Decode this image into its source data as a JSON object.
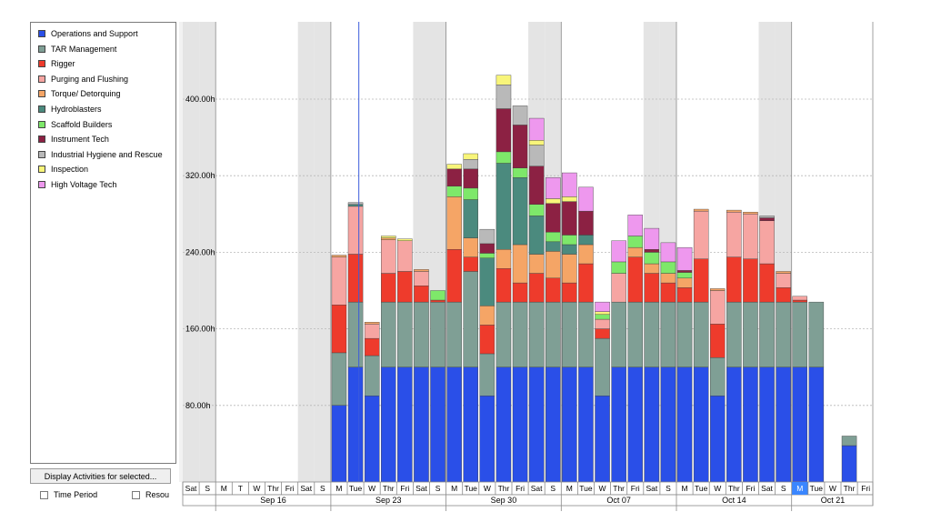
{
  "legend": {
    "items": [
      {
        "label": "Operations and Support",
        "color": "#2a4fe8"
      },
      {
        "label": "TAR Management",
        "color": "#7f9f95"
      },
      {
        "label": "Rigger",
        "color": "#ee3b2c"
      },
      {
        "label": "Purging and Flushing",
        "color": "#f6a5a2"
      },
      {
        "label": "Torque/ Detorquing",
        "color": "#f5a566"
      },
      {
        "label": "Hydroblasters",
        "color": "#4b8a7e"
      },
      {
        "label": "Scaffold Builders",
        "color": "#7ee86a"
      },
      {
        "label": "Instrument Tech",
        "color": "#8c2143"
      },
      {
        "label": "Industrial Hygiene and Rescue",
        "color": "#b9b9b9"
      },
      {
        "label": "Inspection",
        "color": "#f8f57a"
      },
      {
        "label": "High Voltage Tech",
        "color": "#ee98ee"
      }
    ]
  },
  "controls": {
    "display_button": "Display Activities for selected...",
    "time_period_label": "Time Period",
    "resource_label": "Resou"
  },
  "chart_data": {
    "type": "bar",
    "stacked": true,
    "yticks": [
      "80.00h",
      "160.00h",
      "240.00h",
      "320.00h",
      "400.00h"
    ],
    "ylim": [
      0,
      440
    ],
    "day_labels": [
      "Sat",
      "S",
      "M",
      "T",
      "W",
      "Thr",
      "Fri",
      "Sat",
      "S",
      "M",
      "Tue",
      "W",
      "Thr",
      "Fri",
      "Sat",
      "S",
      "M",
      "Tue",
      "W",
      "Thr",
      "Fri",
      "Sat",
      "S",
      "M",
      "Tue",
      "W",
      "Thr",
      "Fri",
      "Sat",
      "S",
      "M",
      "Tue",
      "W",
      "Thr",
      "Fri",
      "Sat",
      "S",
      "M",
      "Tue",
      "W",
      "Thr",
      "Fri"
    ],
    "selected_day_index": 37,
    "week_labels": [
      {
        "label": "Sep 16",
        "start": 2,
        "end": 8
      },
      {
        "label": "Sep 23",
        "start": 9,
        "end": 15
      },
      {
        "label": "Sep 30",
        "start": 16,
        "end": 22
      },
      {
        "label": "Oct 07",
        "start": 23,
        "end": 29
      },
      {
        "label": "Oct 14",
        "start": 30,
        "end": 36
      },
      {
        "label": "Oct 21",
        "start": 37,
        "end": 41
      }
    ],
    "weekend_indices": [
      0,
      1,
      7,
      8,
      14,
      15,
      21,
      22,
      28,
      29,
      35,
      36
    ],
    "today_line_index": 10.7,
    "bars": [
      {
        "i": 9,
        "v": [
          80,
          55,
          50,
          50,
          2
        ]
      },
      {
        "i": 10,
        "v": [
          120,
          68,
          50,
          50,
          0,
          2,
          0,
          0,
          2
        ]
      },
      {
        "i": 11,
        "v": [
          90,
          42,
          18,
          15,
          2
        ]
      },
      {
        "i": 12,
        "v": [
          120,
          68,
          30,
          35,
          2,
          0,
          0,
          0,
          0,
          2
        ]
      },
      {
        "i": 13,
        "v": [
          120,
          68,
          32,
          32,
          0,
          0,
          0,
          0,
          0,
          2
        ]
      },
      {
        "i": 14,
        "v": [
          120,
          68,
          17,
          15,
          2
        ]
      },
      {
        "i": 15,
        "v": [
          120,
          68,
          2,
          0,
          0,
          0,
          10,
          0,
          0,
          0,
          0,
          0
        ]
      },
      {
        "i": 15,
        "v": [
          0
        ]
      },
      {
        "i": 16,
        "v": [
          120,
          68,
          55,
          0,
          55,
          0,
          11,
          18,
          0,
          5
        ]
      },
      {
        "i": 17,
        "v": [
          120,
          100,
          15,
          0,
          20,
          40,
          12,
          20,
          10,
          6
        ]
      },
      {
        "i": 18,
        "v": [
          90,
          44,
          30,
          0,
          20,
          50,
          5,
          10,
          15
        ]
      },
      {
        "i": 19,
        "v": [
          120,
          68,
          35,
          0,
          20,
          90,
          12,
          45,
          25,
          10
        ]
      },
      {
        "i": 20,
        "v": [
          120,
          68,
          20,
          0,
          40,
          70,
          10,
          45,
          20
        ]
      },
      {
        "i": 21,
        "v": [
          120,
          68,
          30,
          0,
          20,
          40,
          12,
          40,
          22,
          5,
          23
        ]
      },
      {
        "i": 22,
        "v": [
          120,
          68,
          25,
          0,
          28,
          10,
          10,
          30,
          0,
          5,
          22
        ]
      },
      {
        "i": 23,
        "v": [
          120,
          68,
          20,
          0,
          30,
          10,
          10,
          35,
          0,
          5,
          25
        ]
      },
      {
        "i": 24,
        "v": [
          120,
          68,
          40,
          0,
          20,
          10,
          0,
          25,
          0,
          0,
          25
        ]
      },
      {
        "i": 25,
        "v": [
          90,
          60,
          10,
          10,
          0,
          0,
          5,
          0,
          0,
          3,
          10
        ]
      },
      {
        "i": 26,
        "v": [
          120,
          68,
          0,
          30,
          0,
          0,
          12,
          0,
          0,
          0,
          22
        ]
      },
      {
        "i": 27,
        "v": [
          120,
          68,
          47,
          0,
          10,
          0,
          12,
          0,
          0,
          0,
          22
        ]
      },
      {
        "i": 28,
        "v": [
          120,
          68,
          30,
          0,
          10,
          0,
          12,
          3,
          0,
          0,
          22
        ]
      },
      {
        "i": 29,
        "v": [
          120,
          68,
          20,
          0,
          10,
          0,
          12,
          0,
          0,
          0,
          20
        ]
      },
      {
        "i": 30,
        "v": [
          120,
          68,
          15,
          0,
          10,
          0,
          6,
          2,
          0,
          0,
          24
        ]
      },
      {
        "i": 31,
        "v": [
          120,
          68,
          45,
          50,
          2
        ]
      },
      {
        "i": 32,
        "v": [
          90,
          40,
          35,
          35,
          2
        ]
      },
      {
        "i": 33,
        "v": [
          120,
          68,
          47,
          47,
          2
        ]
      },
      {
        "i": 34,
        "v": [
          120,
          68,
          45,
          47,
          2
        ]
      },
      {
        "i": 35,
        "v": [
          120,
          68,
          40,
          45,
          0,
          0,
          0,
          3,
          2
        ]
      },
      {
        "i": 36,
        "v": [
          120,
          68,
          15,
          15,
          2
        ]
      },
      {
        "i": 37,
        "v": [
          120,
          68,
          2,
          4
        ]
      },
      {
        "i": 38,
        "v": [
          120,
          68
        ]
      },
      {
        "i": 40,
        "v": [
          38,
          10
        ]
      }
    ]
  }
}
